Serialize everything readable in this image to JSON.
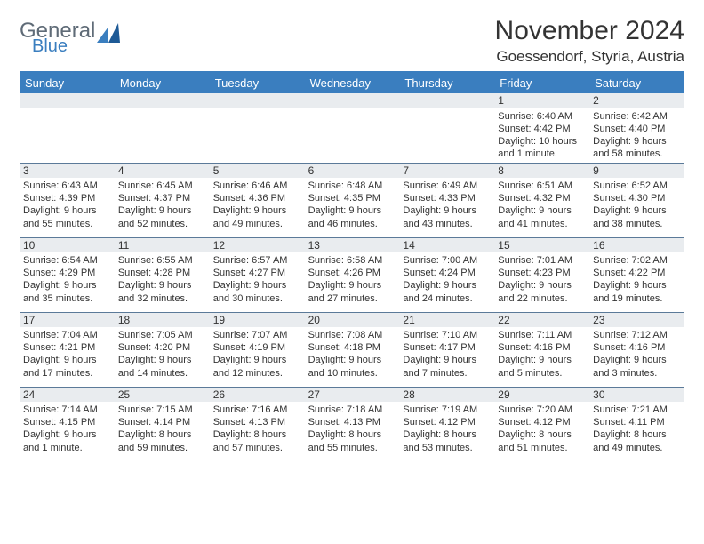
{
  "logo": {
    "general": "General",
    "blue": "Blue"
  },
  "header": {
    "month_title": "November 2024",
    "location": "Goessendorf, Styria, Austria"
  },
  "colors": {
    "brand_blue": "#3a7ebf",
    "header_gray": "#5f6b77",
    "row_bg": "#e9ecef",
    "border": "#5b7a99",
    "text": "#333333"
  },
  "daynames": [
    "Sunday",
    "Monday",
    "Tuesday",
    "Wednesday",
    "Thursday",
    "Friday",
    "Saturday"
  ],
  "weeks": [
    [
      null,
      null,
      null,
      null,
      null,
      {
        "n": "1",
        "sr": "Sunrise: 6:40 AM",
        "ss": "Sunset: 4:42 PM",
        "dl": "Daylight: 10 hours and 1 minute."
      },
      {
        "n": "2",
        "sr": "Sunrise: 6:42 AM",
        "ss": "Sunset: 4:40 PM",
        "dl": "Daylight: 9 hours and 58 minutes."
      }
    ],
    [
      {
        "n": "3",
        "sr": "Sunrise: 6:43 AM",
        "ss": "Sunset: 4:39 PM",
        "dl": "Daylight: 9 hours and 55 minutes."
      },
      {
        "n": "4",
        "sr": "Sunrise: 6:45 AM",
        "ss": "Sunset: 4:37 PM",
        "dl": "Daylight: 9 hours and 52 minutes."
      },
      {
        "n": "5",
        "sr": "Sunrise: 6:46 AM",
        "ss": "Sunset: 4:36 PM",
        "dl": "Daylight: 9 hours and 49 minutes."
      },
      {
        "n": "6",
        "sr": "Sunrise: 6:48 AM",
        "ss": "Sunset: 4:35 PM",
        "dl": "Daylight: 9 hours and 46 minutes."
      },
      {
        "n": "7",
        "sr": "Sunrise: 6:49 AM",
        "ss": "Sunset: 4:33 PM",
        "dl": "Daylight: 9 hours and 43 minutes."
      },
      {
        "n": "8",
        "sr": "Sunrise: 6:51 AM",
        "ss": "Sunset: 4:32 PM",
        "dl": "Daylight: 9 hours and 41 minutes."
      },
      {
        "n": "9",
        "sr": "Sunrise: 6:52 AM",
        "ss": "Sunset: 4:30 PM",
        "dl": "Daylight: 9 hours and 38 minutes."
      }
    ],
    [
      {
        "n": "10",
        "sr": "Sunrise: 6:54 AM",
        "ss": "Sunset: 4:29 PM",
        "dl": "Daylight: 9 hours and 35 minutes."
      },
      {
        "n": "11",
        "sr": "Sunrise: 6:55 AM",
        "ss": "Sunset: 4:28 PM",
        "dl": "Daylight: 9 hours and 32 minutes."
      },
      {
        "n": "12",
        "sr": "Sunrise: 6:57 AM",
        "ss": "Sunset: 4:27 PM",
        "dl": "Daylight: 9 hours and 30 minutes."
      },
      {
        "n": "13",
        "sr": "Sunrise: 6:58 AM",
        "ss": "Sunset: 4:26 PM",
        "dl": "Daylight: 9 hours and 27 minutes."
      },
      {
        "n": "14",
        "sr": "Sunrise: 7:00 AM",
        "ss": "Sunset: 4:24 PM",
        "dl": "Daylight: 9 hours and 24 minutes."
      },
      {
        "n": "15",
        "sr": "Sunrise: 7:01 AM",
        "ss": "Sunset: 4:23 PM",
        "dl": "Daylight: 9 hours and 22 minutes."
      },
      {
        "n": "16",
        "sr": "Sunrise: 7:02 AM",
        "ss": "Sunset: 4:22 PM",
        "dl": "Daylight: 9 hours and 19 minutes."
      }
    ],
    [
      {
        "n": "17",
        "sr": "Sunrise: 7:04 AM",
        "ss": "Sunset: 4:21 PM",
        "dl": "Daylight: 9 hours and 17 minutes."
      },
      {
        "n": "18",
        "sr": "Sunrise: 7:05 AM",
        "ss": "Sunset: 4:20 PM",
        "dl": "Daylight: 9 hours and 14 minutes."
      },
      {
        "n": "19",
        "sr": "Sunrise: 7:07 AM",
        "ss": "Sunset: 4:19 PM",
        "dl": "Daylight: 9 hours and 12 minutes."
      },
      {
        "n": "20",
        "sr": "Sunrise: 7:08 AM",
        "ss": "Sunset: 4:18 PM",
        "dl": "Daylight: 9 hours and 10 minutes."
      },
      {
        "n": "21",
        "sr": "Sunrise: 7:10 AM",
        "ss": "Sunset: 4:17 PM",
        "dl": "Daylight: 9 hours and 7 minutes."
      },
      {
        "n": "22",
        "sr": "Sunrise: 7:11 AM",
        "ss": "Sunset: 4:16 PM",
        "dl": "Daylight: 9 hours and 5 minutes."
      },
      {
        "n": "23",
        "sr": "Sunrise: 7:12 AM",
        "ss": "Sunset: 4:16 PM",
        "dl": "Daylight: 9 hours and 3 minutes."
      }
    ],
    [
      {
        "n": "24",
        "sr": "Sunrise: 7:14 AM",
        "ss": "Sunset: 4:15 PM",
        "dl": "Daylight: 9 hours and 1 minute."
      },
      {
        "n": "25",
        "sr": "Sunrise: 7:15 AM",
        "ss": "Sunset: 4:14 PM",
        "dl": "Daylight: 8 hours and 59 minutes."
      },
      {
        "n": "26",
        "sr": "Sunrise: 7:16 AM",
        "ss": "Sunset: 4:13 PM",
        "dl": "Daylight: 8 hours and 57 minutes."
      },
      {
        "n": "27",
        "sr": "Sunrise: 7:18 AM",
        "ss": "Sunset: 4:13 PM",
        "dl": "Daylight: 8 hours and 55 minutes."
      },
      {
        "n": "28",
        "sr": "Sunrise: 7:19 AM",
        "ss": "Sunset: 4:12 PM",
        "dl": "Daylight: 8 hours and 53 minutes."
      },
      {
        "n": "29",
        "sr": "Sunrise: 7:20 AM",
        "ss": "Sunset: 4:12 PM",
        "dl": "Daylight: 8 hours and 51 minutes."
      },
      {
        "n": "30",
        "sr": "Sunrise: 7:21 AM",
        "ss": "Sunset: 4:11 PM",
        "dl": "Daylight: 8 hours and 49 minutes."
      }
    ]
  ]
}
